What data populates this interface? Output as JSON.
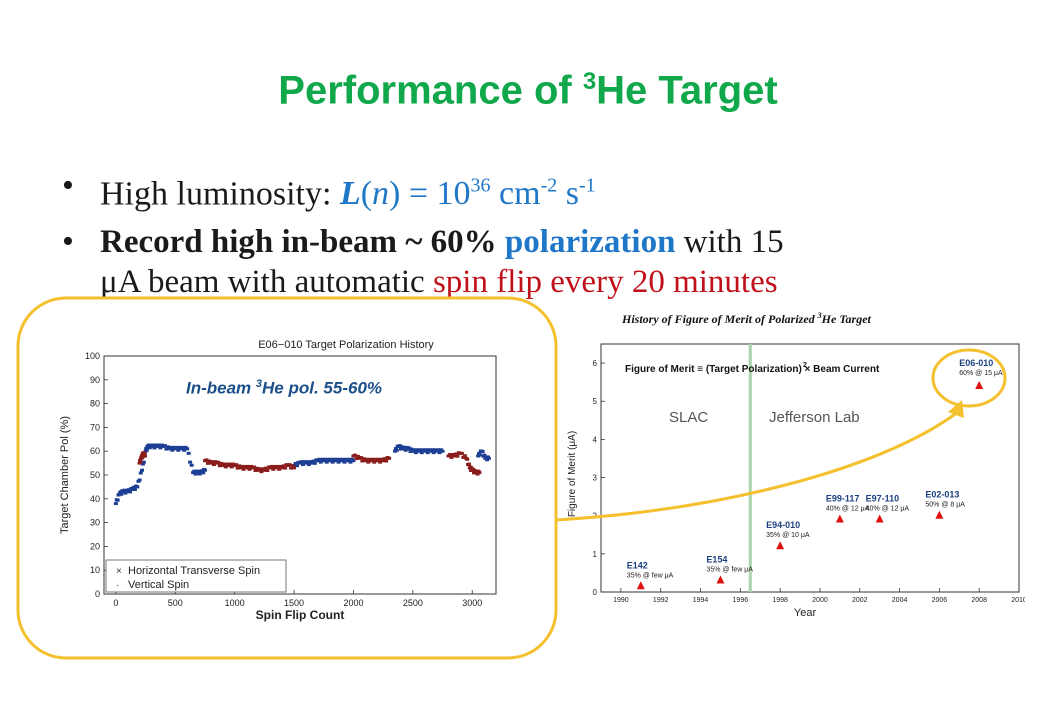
{
  "slide": {
    "title_main": "Performance of ",
    "title_sup": "3",
    "title_end": "He Target",
    "bullet_mark": "•",
    "bullet1": {
      "text": "High luminosity: ",
      "L": "L",
      "open": "(",
      "n": "n",
      "close": ")",
      "eq": " = 10",
      "exp1": "36",
      "cm": " cm",
      "exp2": "-2",
      "s": " s",
      "exp3": "-1"
    },
    "bullet2": {
      "part1": "Record high in-beam ~ 60%",
      "part2": " polarization",
      "part3": " with 15",
      "part4": "μA beam with automatic ",
      "part5": "spin flip every 20 minutes"
    }
  },
  "left_figure": {
    "annotation_main": "In-beam ",
    "annotation_sup": "3",
    "annotation_end": "He pol. 55-60%"
  },
  "right_figure": {
    "caption_main": "History  of Figure of Merit of Polarized ",
    "caption_sup": "3",
    "caption_end": "He Target"
  },
  "chart_data": [
    {
      "type": "scatter",
      "title": "E06−010 Target Polarization History",
      "xlabel": "Spin Flip Count",
      "ylabel": "Target Chamber Pol (%)",
      "xlim": [
        -100,
        3200
      ],
      "ylim": [
        0,
        100
      ],
      "xticks": [
        0,
        500,
        1000,
        1500,
        2000,
        2500,
        3000
      ],
      "yticks": [
        0,
        10,
        20,
        30,
        40,
        50,
        60,
        70,
        80,
        90,
        100
      ],
      "legend_position": "bottom-left",
      "series": [
        {
          "name": "Horizontal Transverse Spin",
          "color": "#1c3f94",
          "x": [
            0,
            30,
            60,
            100,
            140,
            180,
            220,
            250,
            270,
            300,
            350,
            400,
            450,
            500,
            550,
            600,
            650,
            690,
            720,
            750,
            1500,
            1550,
            1600,
            1650,
            1700,
            1750,
            1800,
            1850,
            1900,
            1950,
            2000,
            2350,
            2380,
            2420,
            2460,
            2500,
            2550,
            2600,
            2650,
            2700,
            2750,
            3050,
            3080,
            3110,
            3140
          ],
          "values": [
            38,
            42,
            43,
            43,
            44,
            45,
            52,
            60,
            62,
            62,
            62,
            62,
            61,
            61,
            61,
            61,
            51,
            51,
            51,
            52,
            54,
            55,
            55,
            55,
            56,
            56,
            56,
            56,
            56,
            56,
            56,
            60,
            62,
            61,
            61,
            60,
            60,
            60,
            60,
            60,
            60,
            58,
            60,
            57,
            57
          ]
        },
        {
          "name": "Vertical Spin",
          "color": "#8b1c1c",
          "x": [
            200,
            215,
            230,
            245,
            750,
            800,
            850,
            900,
            950,
            1000,
            1050,
            1100,
            1150,
            1200,
            1250,
            1300,
            1350,
            1400,
            1450,
            1500,
            2000,
            2050,
            2100,
            2150,
            2200,
            2250,
            2300,
            2800,
            2850,
            2900,
            2950,
            2980,
            3000,
            3030,
            3060
          ],
          "values": [
            55,
            57,
            59,
            58,
            56,
            55,
            55,
            54,
            54,
            54,
            53,
            53,
            53,
            52,
            52,
            53,
            53,
            53,
            54,
            53,
            58,
            57,
            56,
            56,
            56,
            56,
            57,
            58,
            58,
            59,
            57,
            53,
            52,
            51,
            51
          ]
        }
      ]
    },
    {
      "type": "scatter",
      "xlabel": "Year",
      "ylabel": "Figure of Merit (μA)",
      "annotation": "Figure of Merit ≡ (Target Polarization)  × Beam Current",
      "annotation_exp": "2",
      "region_labels": [
        "SLAC",
        "Jefferson Lab"
      ],
      "divider_year": 1996.5,
      "xlim": [
        1989,
        2010
      ],
      "ylim": [
        0,
        6.5
      ],
      "xticks": [
        1990,
        1992,
        1994,
        1996,
        1998,
        2000,
        2002,
        2004,
        2006,
        2008,
        2010
      ],
      "yticks": [
        0,
        1,
        2,
        3,
        4,
        5,
        6
      ],
      "points": [
        {
          "name": "E142",
          "detail": "35% @ few μA",
          "x": 1991,
          "value": 0.15
        },
        {
          "name": "E154",
          "detail": "35% @ few μA",
          "x": 1995,
          "value": 0.3
        },
        {
          "name": "E94-010",
          "detail": "35% @ 10 μA",
          "x": 1998,
          "value": 1.2
        },
        {
          "name": "E99-117",
          "detail": "40% @ 12 μA",
          "x": 2001,
          "value": 1.9
        },
        {
          "name": "E97-110",
          "detail": "40% @ 12 μA",
          "x": 2003,
          "value": 1.9
        },
        {
          "name": "E02-013",
          "detail": "50% @ 8 μA",
          "x": 2006,
          "value": 2.0
        },
        {
          "name": "E06-010",
          "detail": "60% @ 15 μA",
          "x": 2008,
          "value": 5.4
        }
      ],
      "marker_color": "#e01010"
    }
  ]
}
